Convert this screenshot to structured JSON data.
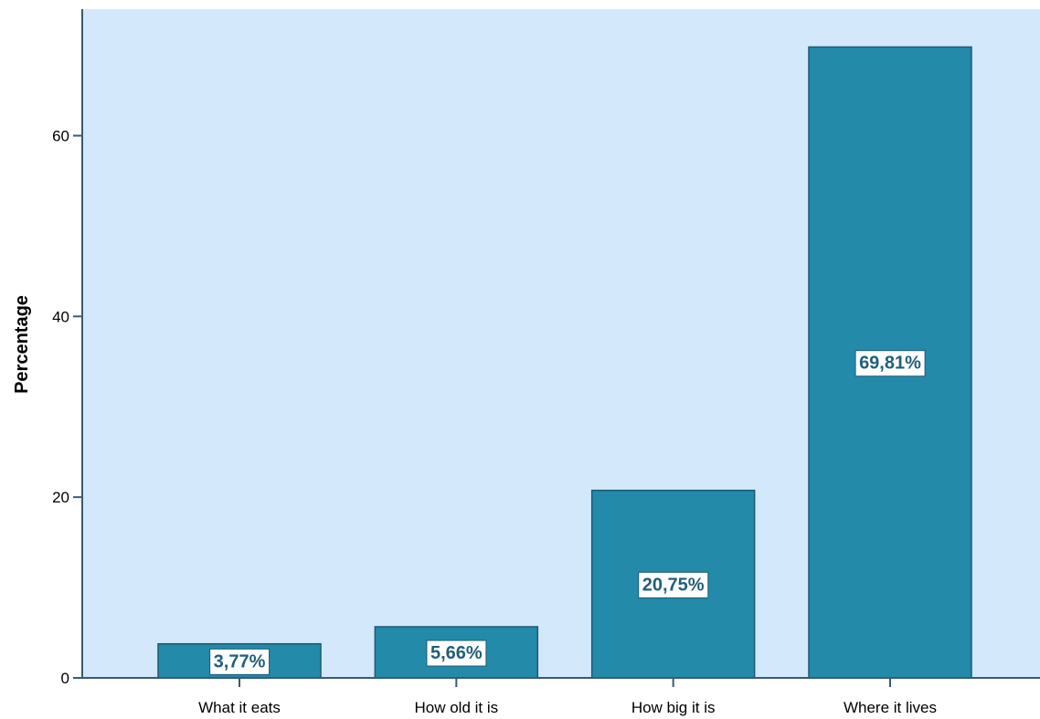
{
  "chart_data": {
    "type": "bar",
    "title": "",
    "xlabel": "",
    "ylabel": "Percentage",
    "categories": [
      "What it eats",
      "How old it is",
      "How big it is",
      "Where it lives"
    ],
    "values": [
      3.77,
      5.66,
      20.75,
      69.81
    ],
    "value_labels": [
      "3,77%",
      "5,66%",
      "20,75%",
      "69,81%"
    ],
    "ylim": [
      0,
      74
    ],
    "yticks": [
      0,
      20,
      40,
      60
    ],
    "ytick_labels": [
      "0",
      "20",
      "40",
      "60"
    ],
    "grid": false,
    "legend": "none",
    "colors": {
      "bar": "#238aaa",
      "bar_edge": "#1e5b73",
      "plot_background": "#d3e8fb",
      "axis": "#3c5a6e",
      "label_text": "#1f5f7a",
      "label_box": "#ffffff"
    }
  }
}
